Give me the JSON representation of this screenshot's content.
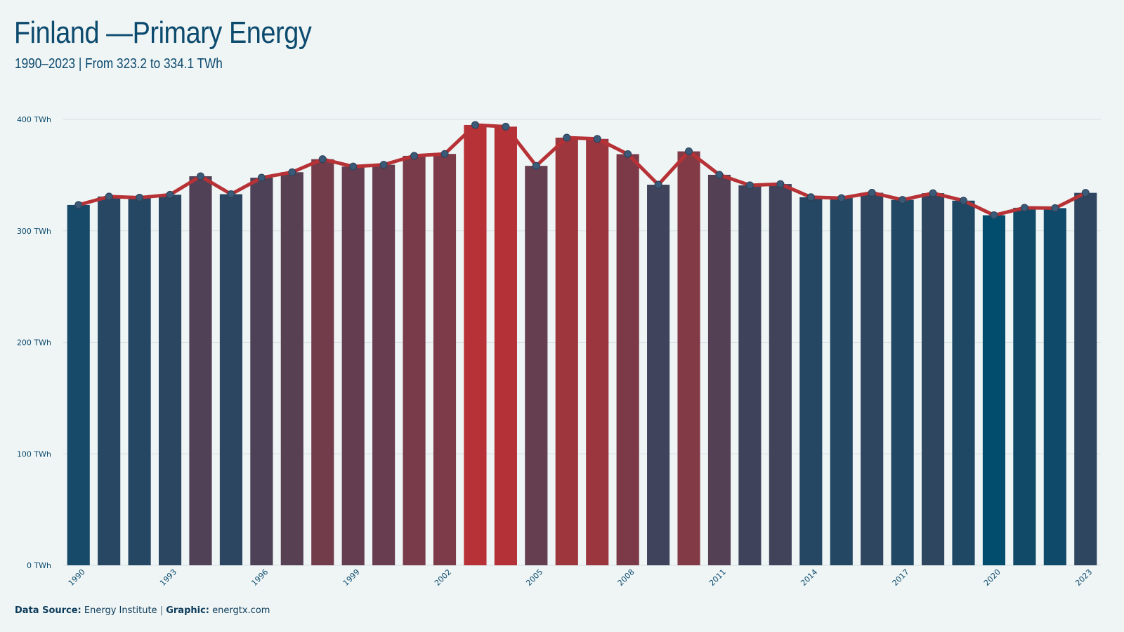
{
  "header": {
    "title": "Finland —Primary Energy",
    "subtitle": "1990–2023 | From 323.2 to 334.1 TWh"
  },
  "footer": {
    "source_label": "Data Source:",
    "source_value": "Energy Institute",
    "separator": "|",
    "graphic_label": "Graphic:",
    "graphic_value": "energtx.com"
  },
  "colors": {
    "background": "#eff5f5",
    "low": "#024c6e",
    "high": "#b73236",
    "line": "#b73236",
    "marker": "#3a5a78",
    "grid": "#d6dfe2",
    "text": "#0c4a6e"
  },
  "chart_data": {
    "type": "bar",
    "title": "Finland —Primary Energy",
    "subtitle": "1990–2023 | From 323.2 to 334.1 TWh",
    "unit": "TWh",
    "ylim": [
      0,
      400
    ],
    "yticks": [
      0,
      100,
      200,
      300,
      400
    ],
    "ytick_labels": [
      "0 TWh",
      "100 TWh",
      "200 TWh",
      "300 TWh",
      "400 TWh"
    ],
    "xtick_labels": [
      "1990",
      "1993",
      "1996",
      "1999",
      "2002",
      "2005",
      "2008",
      "2011",
      "2014",
      "2017",
      "2020",
      "2023"
    ],
    "grid": true,
    "overlay": "line with markers",
    "categories": [
      "1990",
      "1991",
      "1992",
      "1993",
      "1994",
      "1995",
      "1996",
      "1997",
      "1998",
      "1999",
      "2000",
      "2001",
      "2002",
      "2003",
      "2004",
      "2005",
      "2006",
      "2007",
      "2008",
      "2009",
      "2010",
      "2011",
      "2012",
      "2013",
      "2014",
      "2015",
      "2016",
      "2017",
      "2018",
      "2019",
      "2020",
      "2021",
      "2022",
      "2023"
    ],
    "values": [
      323.2,
      330.8,
      329.8,
      332.4,
      349.0,
      332.9,
      347.7,
      352.6,
      364.3,
      357.7,
      359.3,
      367.3,
      369.0,
      395.0,
      393.5,
      358.3,
      383.6,
      382.5,
      368.8,
      341.4,
      371.3,
      350.3,
      340.9,
      342.0,
      330.2,
      329.4,
      334.2,
      327.8,
      333.8,
      327.1,
      314.0,
      320.7,
      320.4,
      334.1
    ]
  }
}
